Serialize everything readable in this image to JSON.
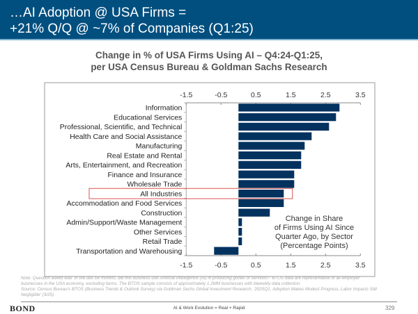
{
  "header": {
    "title_line1": "…AI Adoption @ USA Firms =",
    "title_line2": "+21% Q/Q @ ~7% of Companies (Q1:25)"
  },
  "chart_data": {
    "type": "bar",
    "orientation": "horizontal",
    "title": "Change in % of USA Firms Using AI – Q4:24-Q1:25,",
    "subtitle": "per USA Census Bureau & Goldman Sachs Research",
    "xlabel": "",
    "ylabel": "",
    "xlim": [
      -1.5,
      3.5
    ],
    "xticks": [
      -1.5,
      -0.5,
      0.5,
      1.5,
      2.5,
      3.5
    ],
    "xtick_labels": [
      "-1.5",
      "-0.5",
      "0.5",
      "1.5",
      "2.5",
      "3.5"
    ],
    "grid": false,
    "categories": [
      "Information",
      "Educational Services",
      "Professional, Scientific, and Technical",
      "Health Care and Social Assistance",
      "Manufacturing",
      "Real Estate and Rental",
      "Arts, Entertainment, and Recreation",
      "Finance and Insurance",
      "Wholesale Trade",
      "All Industries",
      "Accommodation and Food Services",
      "Construction",
      "Admin/Support/Waste Management",
      "Other Services",
      "Retail Trade",
      "Transportation and Warehousing"
    ],
    "values": [
      2.9,
      2.8,
      2.6,
      2.1,
      1.9,
      1.8,
      1.8,
      1.6,
      1.6,
      1.3,
      1.3,
      0.9,
      0.1,
      0.1,
      0.1,
      -0.7
    ],
    "highlighted_category": "All Industries",
    "annotation": [
      "Change in Share",
      "of Firms Using AI Since",
      "Quarter Ago, by Sector",
      "(Percentage Points)"
    ],
    "bar_color": "#03325f",
    "highlight_color": "#d9534f"
  },
  "notes": {
    "line1": "Note: Question asked was 'In the last six months, did this business use Artificial Intelligence (AI) in producing goods or services?' BTOS data are representative of all employer",
    "line2": "businesses in the USA economy, excluding farms. The BTOS sample consists of approximately 1.2MM businesses with biweekly data collection.",
    "line3": "Source: Census Bureau's BTOS (Business Trends & Outlook Survey) via Goldman Sachs Global Investment Research, '2025Q1: Adoption Makes Modest Progress, Labor Impacts Still",
    "line4": "Negligible' (3/25)"
  },
  "footer": {
    "brand": "BOND",
    "tagline": "AI & Work Evolution = Real + Rapid",
    "page_number": "329"
  }
}
